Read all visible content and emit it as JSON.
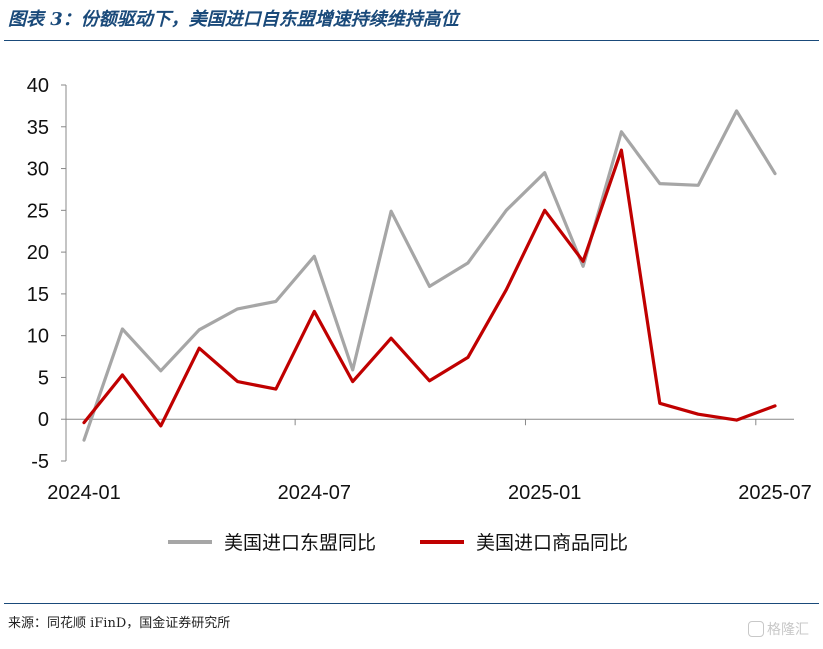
{
  "figure": {
    "title": "图表 3：份额驱动下，美国进口自东盟增速持续维持高位",
    "source": "来源：同花顺 iFinD，国金证券研究所",
    "watermark": "格隆汇"
  },
  "colors": {
    "asean": "#a6a6a6",
    "goods": "#c00000",
    "rule": "#1a4a7a"
  },
  "chart_data": {
    "type": "line",
    "x": [
      "2024-01",
      "2024-02",
      "2024-03",
      "2024-04",
      "2024-05",
      "2024-06",
      "2024-07",
      "2024-08",
      "2024-09",
      "2024-10",
      "2024-11",
      "2024-12",
      "2025-01",
      "2025-02",
      "2025-03",
      "2025-04",
      "2025-05",
      "2025-06",
      "2025-07"
    ],
    "x_tick_labels": [
      "2024-01",
      "2024-07",
      "2025-01",
      "2025-07"
    ],
    "y_ticks": [
      40,
      35,
      30,
      25,
      20,
      15,
      10,
      5,
      0,
      -5
    ],
    "ylim": [
      -5,
      40
    ],
    "grid": false,
    "legend_position": "bottom",
    "series": [
      {
        "name": "美国进口东盟同比",
        "values": [
          -2.5,
          10.8,
          5.8,
          10.7,
          13.2,
          14.1,
          19.5,
          5.9,
          24.9,
          15.9,
          18.7,
          25.0,
          29.5,
          18.3,
          34.4,
          28.2,
          28.0,
          36.9,
          29.4
        ]
      },
      {
        "name": "美国进口商品同比",
        "values": [
          -0.4,
          5.3,
          -0.8,
          8.5,
          4.5,
          3.6,
          12.9,
          4.5,
          9.7,
          4.6,
          7.4,
          15.5,
          25.0,
          18.9,
          32.2,
          1.9,
          0.6,
          -0.1,
          1.6
        ]
      }
    ]
  }
}
